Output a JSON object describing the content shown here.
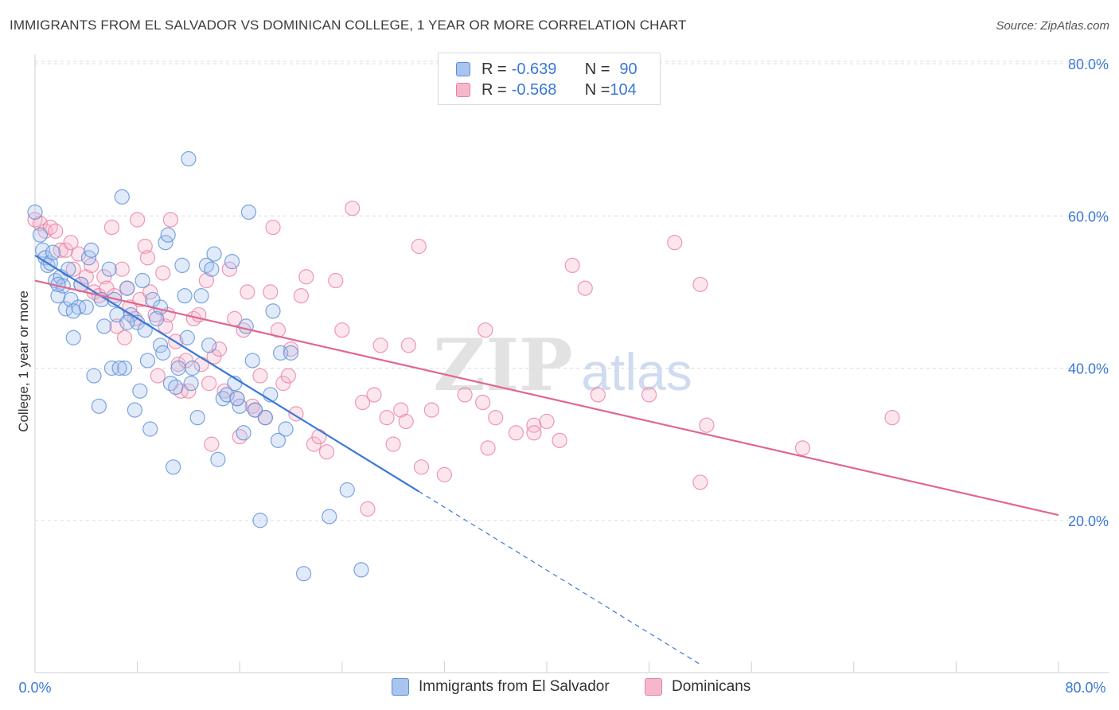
{
  "title": "IMMIGRANTS FROM EL SALVADOR VS DOMINICAN COLLEGE, 1 YEAR OR MORE CORRELATION CHART",
  "source": "Source: ZipAtlas.com",
  "watermark": {
    "zip": "ZIP",
    "atlas": "atlas"
  },
  "legend": {
    "rows": [
      {
        "r_label": "R = ",
        "r_value": "-0.639",
        "n_label": "N = ",
        "n_value": "90",
        "color": "#a9c4ee"
      },
      {
        "r_label": "R = ",
        "r_value": "-0.568",
        "n_label": "N = ",
        "n_value": "104",
        "color": "#f5b8cb"
      }
    ]
  },
  "colors": {
    "blue": "#5b8fd9",
    "blue_line": "#3a78d8",
    "pink": "#e87fa3",
    "pink_line": "#e0678f",
    "axis_text": "#3a78d8"
  },
  "chart_data": {
    "type": "scatter",
    "title": "IMMIGRANTS FROM EL SALVADOR VS DOMINICAN COLLEGE, 1 YEAR OR MORE CORRELATION CHART",
    "xlabel": "",
    "ylabel": "College, 1 year or more",
    "xlim": [
      0,
      0.8
    ],
    "ylim": [
      0,
      0.8
    ],
    "x_tick_labels": [
      "0.0%",
      "80.0%"
    ],
    "y_tick_labels": [
      "20.0%",
      "40.0%",
      "60.0%",
      "80.0%"
    ],
    "y_ticks": [
      0.2,
      0.4,
      0.6,
      0.8
    ],
    "grid": true,
    "legend_position": "top-center",
    "series": [
      {
        "name": "Immigrants from El Salvador",
        "color": "#5b8fd9",
        "trend": {
          "x0": 0.0,
          "y0": 0.548,
          "x1": 0.3,
          "y1": 0.238,
          "dashed_to_x": 0.52
        },
        "points": [
          [
            0.0,
            0.605
          ],
          [
            0.004,
            0.575
          ],
          [
            0.006,
            0.555
          ],
          [
            0.008,
            0.545
          ],
          [
            0.01,
            0.535
          ],
          [
            0.012,
            0.538
          ],
          [
            0.014,
            0.552
          ],
          [
            0.016,
            0.515
          ],
          [
            0.018,
            0.495
          ],
          [
            0.02,
            0.52
          ],
          [
            0.022,
            0.508
          ],
          [
            0.024,
            0.478
          ],
          [
            0.026,
            0.53
          ],
          [
            0.028,
            0.49
          ],
          [
            0.03,
            0.44
          ],
          [
            0.034,
            0.48
          ],
          [
            0.036,
            0.51
          ],
          [
            0.04,
            0.48
          ],
          [
            0.042,
            0.545
          ],
          [
            0.044,
            0.555
          ],
          [
            0.046,
            0.39
          ],
          [
            0.05,
            0.35
          ],
          [
            0.052,
            0.49
          ],
          [
            0.054,
            0.455
          ],
          [
            0.058,
            0.53
          ],
          [
            0.06,
            0.4
          ],
          [
            0.062,
            0.49
          ],
          [
            0.064,
            0.47
          ],
          [
            0.068,
            0.625
          ],
          [
            0.07,
            0.4
          ],
          [
            0.072,
            0.505
          ],
          [
            0.075,
            0.47
          ],
          [
            0.078,
            0.345
          ],
          [
            0.08,
            0.46
          ],
          [
            0.082,
            0.37
          ],
          [
            0.084,
            0.515
          ],
          [
            0.086,
            0.45
          ],
          [
            0.088,
            0.41
          ],
          [
            0.09,
            0.32
          ],
          [
            0.092,
            0.49
          ],
          [
            0.095,
            0.465
          ],
          [
            0.098,
            0.43
          ],
          [
            0.1,
            0.42
          ],
          [
            0.102,
            0.565
          ],
          [
            0.104,
            0.575
          ],
          [
            0.106,
            0.38
          ],
          [
            0.108,
            0.27
          ],
          [
            0.11,
            0.375
          ],
          [
            0.112,
            0.4
          ],
          [
            0.115,
            0.535
          ],
          [
            0.117,
            0.495
          ],
          [
            0.119,
            0.44
          ],
          [
            0.12,
            0.675
          ],
          [
            0.123,
            0.4
          ],
          [
            0.127,
            0.335
          ],
          [
            0.13,
            0.495
          ],
          [
            0.134,
            0.535
          ],
          [
            0.136,
            0.43
          ],
          [
            0.138,
            0.53
          ],
          [
            0.14,
            0.55
          ],
          [
            0.143,
            0.28
          ],
          [
            0.147,
            0.36
          ],
          [
            0.15,
            0.365
          ],
          [
            0.154,
            0.54
          ],
          [
            0.156,
            0.38
          ],
          [
            0.16,
            0.35
          ],
          [
            0.163,
            0.315
          ],
          [
            0.165,
            0.455
          ],
          [
            0.167,
            0.605
          ],
          [
            0.17,
            0.41
          ],
          [
            0.172,
            0.345
          ],
          [
            0.176,
            0.2
          ],
          [
            0.18,
            0.335
          ],
          [
            0.184,
            0.365
          ],
          [
            0.186,
            0.475
          ],
          [
            0.19,
            0.305
          ],
          [
            0.192,
            0.42
          ],
          [
            0.196,
            0.32
          ],
          [
            0.2,
            0.42
          ],
          [
            0.21,
            0.13
          ],
          [
            0.23,
            0.205
          ],
          [
            0.244,
            0.24
          ],
          [
            0.255,
            0.135
          ],
          [
            0.098,
            0.48
          ],
          [
            0.03,
            0.475
          ],
          [
            0.066,
            0.4
          ],
          [
            0.122,
            0.38
          ],
          [
            0.072,
            0.46
          ],
          [
            0.158,
            0.36
          ],
          [
            0.018,
            0.51
          ]
        ]
      },
      {
        "name": "Dominicans",
        "color": "#e87fa3",
        "trend": {
          "x0": 0.0,
          "y0": 0.515,
          "x1": 0.8,
          "y1": 0.207
        },
        "points": [
          [
            0.0,
            0.595
          ],
          [
            0.004,
            0.59
          ],
          [
            0.008,
            0.58
          ],
          [
            0.012,
            0.585
          ],
          [
            0.016,
            0.58
          ],
          [
            0.02,
            0.555
          ],
          [
            0.024,
            0.555
          ],
          [
            0.028,
            0.565
          ],
          [
            0.03,
            0.53
          ],
          [
            0.034,
            0.55
          ],
          [
            0.036,
            0.51
          ],
          [
            0.04,
            0.52
          ],
          [
            0.044,
            0.535
          ],
          [
            0.046,
            0.5
          ],
          [
            0.05,
            0.495
          ],
          [
            0.054,
            0.52
          ],
          [
            0.056,
            0.505
          ],
          [
            0.06,
            0.585
          ],
          [
            0.062,
            0.495
          ],
          [
            0.064,
            0.455
          ],
          [
            0.068,
            0.53
          ],
          [
            0.07,
            0.44
          ],
          [
            0.072,
            0.505
          ],
          [
            0.074,
            0.48
          ],
          [
            0.078,
            0.465
          ],
          [
            0.08,
            0.595
          ],
          [
            0.082,
            0.49
          ],
          [
            0.086,
            0.56
          ],
          [
            0.088,
            0.545
          ],
          [
            0.09,
            0.5
          ],
          [
            0.094,
            0.47
          ],
          [
            0.096,
            0.39
          ],
          [
            0.1,
            0.525
          ],
          [
            0.102,
            0.455
          ],
          [
            0.104,
            0.47
          ],
          [
            0.106,
            0.595
          ],
          [
            0.11,
            0.435
          ],
          [
            0.112,
            0.405
          ],
          [
            0.114,
            0.37
          ],
          [
            0.118,
            0.41
          ],
          [
            0.12,
            0.37
          ],
          [
            0.124,
            0.465
          ],
          [
            0.128,
            0.47
          ],
          [
            0.13,
            0.405
          ],
          [
            0.134,
            0.515
          ],
          [
            0.136,
            0.38
          ],
          [
            0.138,
            0.3
          ],
          [
            0.14,
            0.415
          ],
          [
            0.144,
            0.425
          ],
          [
            0.148,
            0.37
          ],
          [
            0.152,
            0.53
          ],
          [
            0.156,
            0.465
          ],
          [
            0.158,
            0.36
          ],
          [
            0.16,
            0.31
          ],
          [
            0.163,
            0.45
          ],
          [
            0.166,
            0.5
          ],
          [
            0.17,
            0.35
          ],
          [
            0.172,
            0.345
          ],
          [
            0.176,
            0.39
          ],
          [
            0.18,
            0.335
          ],
          [
            0.184,
            0.5
          ],
          [
            0.186,
            0.585
          ],
          [
            0.19,
            0.45
          ],
          [
            0.194,
            0.38
          ],
          [
            0.198,
            0.39
          ],
          [
            0.2,
            0.425
          ],
          [
            0.204,
            0.34
          ],
          [
            0.208,
            0.495
          ],
          [
            0.212,
            0.52
          ],
          [
            0.218,
            0.3
          ],
          [
            0.222,
            0.31
          ],
          [
            0.228,
            0.29
          ],
          [
            0.235,
            0.515
          ],
          [
            0.24,
            0.45
          ],
          [
            0.248,
            0.61
          ],
          [
            0.256,
            0.355
          ],
          [
            0.26,
            0.215
          ],
          [
            0.265,
            0.365
          ],
          [
            0.27,
            0.43
          ],
          [
            0.275,
            0.335
          ],
          [
            0.28,
            0.3
          ],
          [
            0.286,
            0.345
          ],
          [
            0.29,
            0.33
          ],
          [
            0.292,
            0.43
          ],
          [
            0.3,
            0.56
          ],
          [
            0.302,
            0.27
          ],
          [
            0.31,
            0.345
          ],
          [
            0.32,
            0.26
          ],
          [
            0.336,
            0.365
          ],
          [
            0.35,
            0.355
          ],
          [
            0.352,
            0.45
          ],
          [
            0.354,
            0.295
          ],
          [
            0.36,
            0.335
          ],
          [
            0.376,
            0.315
          ],
          [
            0.39,
            0.325
          ],
          [
            0.39,
            0.315
          ],
          [
            0.4,
            0.33
          ],
          [
            0.41,
            0.305
          ],
          [
            0.42,
            0.535
          ],
          [
            0.43,
            0.505
          ],
          [
            0.44,
            0.365
          ],
          [
            0.48,
            0.365
          ],
          [
            0.5,
            0.565
          ],
          [
            0.52,
            0.51
          ]
        ]
      }
    ],
    "extra_points": {
      "pink_far": [
        [
          0.52,
          0.25
        ],
        [
          0.525,
          0.325
        ],
        [
          0.6,
          0.295
        ],
        [
          0.67,
          0.335
        ]
      ]
    }
  }
}
